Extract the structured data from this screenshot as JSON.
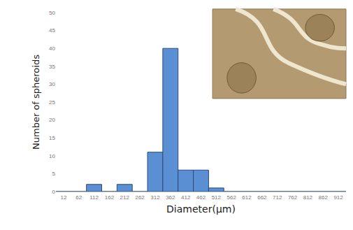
{
  "chart_data": {
    "type": "bar",
    "xlabel": "Diameter(μm)",
    "ylabel": "Number of spheroids",
    "categories": [
      "12",
      "62",
      "112",
      "162",
      "212",
      "262",
      "312",
      "362",
      "412",
      "462",
      "512",
      "562",
      "612",
      "662",
      "712",
      "762",
      "812",
      "862",
      "912"
    ],
    "values": [
      0,
      0,
      2,
      0,
      2,
      0,
      11,
      40,
      6,
      6,
      1,
      0,
      0,
      0,
      0,
      0,
      0,
      0,
      0
    ],
    "color": "#5b8fd4",
    "ylim": [
      0,
      50
    ],
    "yticks": [
      0,
      5,
      10,
      15,
      20,
      25,
      30,
      35,
      40,
      45,
      50
    ],
    "grid": false
  }
}
